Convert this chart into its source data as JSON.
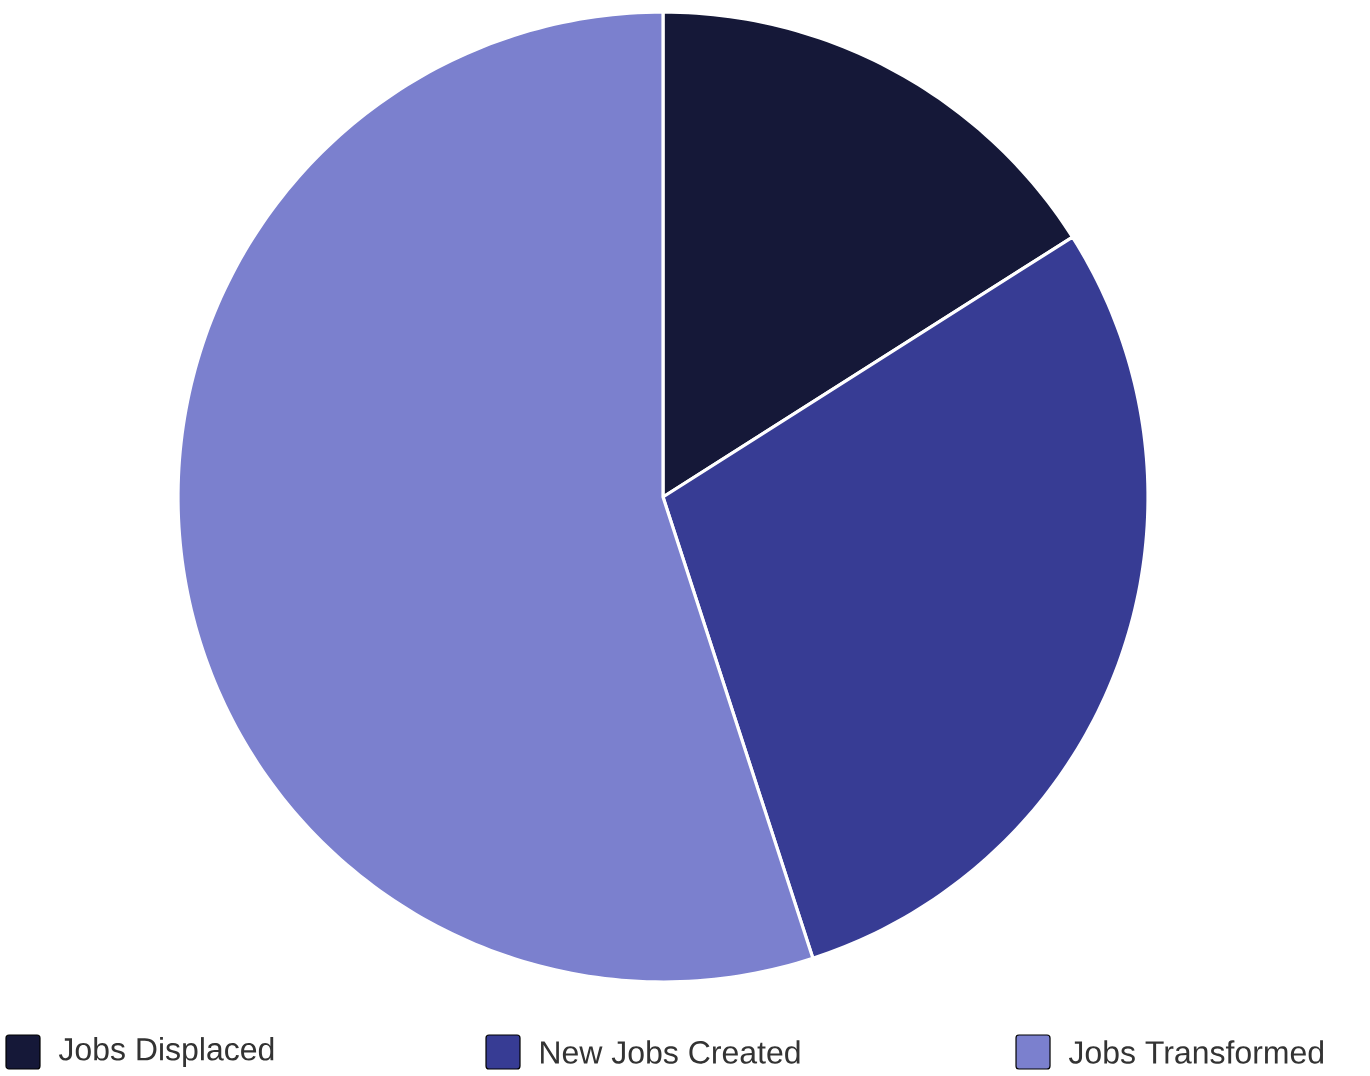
{
  "chart_data": {
    "type": "pie",
    "categories": [
      "Jobs Displaced",
      "New Jobs Created",
      "Jobs Transformed"
    ],
    "values": [
      16,
      29,
      55
    ],
    "colors": [
      "#151838",
      "#373c94",
      "#7b80ce"
    ],
    "legend": "bottom"
  }
}
